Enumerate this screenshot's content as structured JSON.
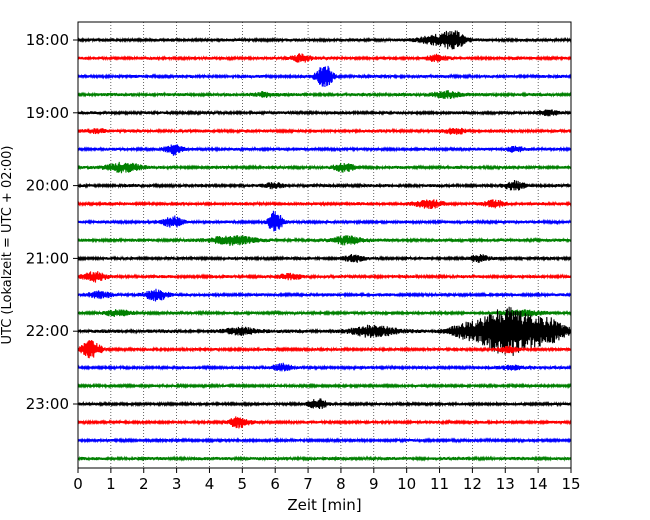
{
  "chart_data": {
    "type": "line",
    "title": "",
    "xlabel": "Zeit  [min]",
    "ylabel": "UTC (Lokalzeit = UTC + 02:00)",
    "xlim": [
      0,
      15
    ],
    "x_ticks": [
      "0",
      "1",
      "2",
      "3",
      "4",
      "5",
      "6",
      "7",
      "8",
      "9",
      "10",
      "11",
      "12",
      "13",
      "14",
      "15"
    ],
    "y_ticks": [
      "18:00",
      "19:00",
      "20:00",
      "21:00",
      "22:00",
      "23:00"
    ],
    "grid": "vertical dotted lines at each minute",
    "legend": "none",
    "trace_colors_cycle": [
      "#000000",
      "#ff0000",
      "#0000ff",
      "#008000"
    ],
    "trace_interval_min": 15,
    "traces": [
      {
        "start": "18:00",
        "color": "#000000",
        "noise": 0.3,
        "events": [
          {
            "t": 11.4,
            "amp": 2.0,
            "dur": 0.35
          },
          {
            "t": 10.8,
            "amp": 0.9,
            "dur": 0.4
          }
        ]
      },
      {
        "start": "18:15",
        "color": "#ff0000",
        "noise": 0.28,
        "events": [
          {
            "t": 6.8,
            "amp": 0.9,
            "dur": 0.3
          },
          {
            "t": 10.9,
            "amp": 0.7,
            "dur": 0.3
          }
        ]
      },
      {
        "start": "18:30",
        "color": "#0000ff",
        "noise": 0.28,
        "events": [
          {
            "t": 7.5,
            "amp": 2.6,
            "dur": 0.25
          }
        ]
      },
      {
        "start": "18:45",
        "color": "#008000",
        "noise": 0.3,
        "events": [
          {
            "t": 11.2,
            "amp": 0.8,
            "dur": 0.4
          },
          {
            "t": 5.7,
            "amp": 0.6,
            "dur": 0.3
          }
        ]
      },
      {
        "start": "19:00",
        "color": "#000000",
        "noise": 0.28,
        "events": [
          {
            "t": 14.3,
            "amp": 0.7,
            "dur": 0.3
          }
        ]
      },
      {
        "start": "19:15",
        "color": "#ff0000",
        "noise": 0.3,
        "events": [
          {
            "t": 11.5,
            "amp": 0.7,
            "dur": 0.3
          },
          {
            "t": 0.6,
            "amp": 0.5,
            "dur": 0.3
          }
        ]
      },
      {
        "start": "19:30",
        "color": "#0000ff",
        "noise": 0.28,
        "events": [
          {
            "t": 2.9,
            "amp": 1.1,
            "dur": 0.25
          },
          {
            "t": 13.3,
            "amp": 0.6,
            "dur": 0.3
          }
        ]
      },
      {
        "start": "19:45",
        "color": "#008000",
        "noise": 0.28,
        "events": [
          {
            "t": 1.4,
            "amp": 1.1,
            "dur": 0.5
          },
          {
            "t": 8.1,
            "amp": 0.9,
            "dur": 0.3
          }
        ]
      },
      {
        "start": "20:00",
        "color": "#000000",
        "noise": 0.28,
        "events": [
          {
            "t": 13.3,
            "amp": 1.0,
            "dur": 0.3
          },
          {
            "t": 6.0,
            "amp": 0.6,
            "dur": 0.3
          }
        ]
      },
      {
        "start": "20:15",
        "color": "#ff0000",
        "noise": 0.3,
        "events": [
          {
            "t": 10.7,
            "amp": 0.9,
            "dur": 0.4
          },
          {
            "t": 12.7,
            "amp": 0.7,
            "dur": 0.3
          }
        ]
      },
      {
        "start": "20:30",
        "color": "#0000ff",
        "noise": 0.28,
        "events": [
          {
            "t": 6.0,
            "amp": 2.4,
            "dur": 0.2
          },
          {
            "t": 2.9,
            "amp": 1.2,
            "dur": 0.3
          }
        ]
      },
      {
        "start": "20:45",
        "color": "#008000",
        "noise": 0.3,
        "events": [
          {
            "t": 4.7,
            "amp": 1.1,
            "dur": 0.6
          },
          {
            "t": 8.2,
            "amp": 1.0,
            "dur": 0.4
          }
        ]
      },
      {
        "start": "21:00",
        "color": "#000000",
        "noise": 0.26,
        "events": [
          {
            "t": 8.4,
            "amp": 0.8,
            "dur": 0.3
          },
          {
            "t": 12.2,
            "amp": 0.7,
            "dur": 0.3
          }
        ]
      },
      {
        "start": "21:15",
        "color": "#ff0000",
        "noise": 0.28,
        "events": [
          {
            "t": 0.5,
            "amp": 1.0,
            "dur": 0.35
          },
          {
            "t": 6.5,
            "amp": 0.5,
            "dur": 0.4
          }
        ]
      },
      {
        "start": "21:30",
        "color": "#0000ff",
        "noise": 0.28,
        "events": [
          {
            "t": 2.4,
            "amp": 1.2,
            "dur": 0.35
          },
          {
            "t": 0.7,
            "amp": 0.8,
            "dur": 0.35
          }
        ]
      },
      {
        "start": "21:45",
        "color": "#008000",
        "noise": 0.28,
        "events": [
          {
            "t": 1.2,
            "amp": 0.6,
            "dur": 0.4
          },
          {
            "t": 13.5,
            "amp": 0.6,
            "dur": 0.6
          }
        ]
      },
      {
        "start": "22:00",
        "color": "#000000",
        "noise": 0.34,
        "events": [
          {
            "t": 13.0,
            "amp": 5.5,
            "dur": 0.7
          },
          {
            "t": 14.2,
            "amp": 3.0,
            "dur": 0.6
          },
          {
            "t": 9.0,
            "amp": 1.3,
            "dur": 0.6
          },
          {
            "t": 11.8,
            "amp": 1.4,
            "dur": 0.6
          },
          {
            "t": 5.0,
            "amp": 0.7,
            "dur": 0.5
          }
        ]
      },
      {
        "start": "22:15",
        "color": "#ff0000",
        "noise": 0.26,
        "events": [
          {
            "t": 0.4,
            "amp": 1.8,
            "dur": 0.3
          },
          {
            "t": 13.1,
            "amp": 0.6,
            "dur": 0.3
          }
        ]
      },
      {
        "start": "22:30",
        "color": "#0000ff",
        "noise": 0.26,
        "events": [
          {
            "t": 6.2,
            "amp": 0.9,
            "dur": 0.3
          },
          {
            "t": 13.2,
            "amp": 0.5,
            "dur": 0.4
          }
        ]
      },
      {
        "start": "22:45",
        "color": "#008000",
        "noise": 0.24,
        "events": []
      },
      {
        "start": "23:00",
        "color": "#000000",
        "noise": 0.26,
        "events": [
          {
            "t": 7.3,
            "amp": 1.0,
            "dur": 0.3
          }
        ]
      },
      {
        "start": "23:15",
        "color": "#ff0000",
        "noise": 0.26,
        "events": [
          {
            "t": 4.9,
            "amp": 1.2,
            "dur": 0.3
          }
        ]
      },
      {
        "start": "23:30",
        "color": "#0000ff",
        "noise": 0.24,
        "events": []
      },
      {
        "start": "23:45",
        "color": "#008000",
        "noise": 0.3,
        "events": []
      }
    ]
  }
}
